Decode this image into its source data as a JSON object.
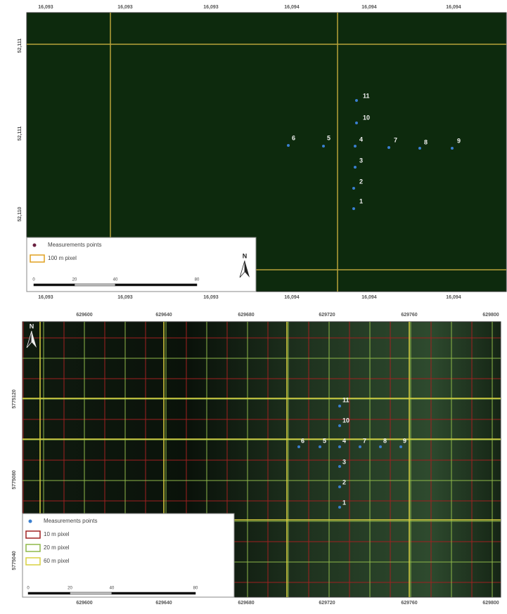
{
  "panels": [
    {
      "top_axis": [
        "16,093",
        "16,093",
        "16,093",
        "16,094",
        "16,094",
        "16,094"
      ],
      "bottom_axis": [
        "16,093",
        "16,093",
        "16,093",
        "16,094",
        "16,094",
        "16,094"
      ],
      "left_axis": [
        "52,111",
        "52,111",
        "52,110"
      ],
      "points": [
        "1",
        "2",
        "3",
        "4",
        "5",
        "6",
        "7",
        "8",
        "9",
        "10",
        "11"
      ],
      "legend": {
        "items": [
          "Measurements points",
          "100 m pixel"
        ],
        "scale": [
          "0",
          "20",
          "40",
          "80"
        ]
      },
      "north": "N"
    },
    {
      "top_axis": [
        "629600",
        "629640",
        "629680",
        "629720",
        "629760",
        "629800"
      ],
      "bottom_axis": [
        "629600",
        "629640",
        "629680",
        "629720",
        "629760",
        "629800"
      ],
      "left_axis": [
        "5775120",
        "5775080",
        "5775040"
      ],
      "points": [
        "1",
        "2",
        "3",
        "4",
        "5",
        "6",
        "7",
        "8",
        "9",
        "10",
        "11"
      ],
      "legend": {
        "items": [
          "Measurements points",
          "10 m pixel",
          "20 m pixel",
          "60 m pixel"
        ],
        "scale": [
          "0",
          "20",
          "40",
          "80"
        ]
      },
      "north": "N"
    }
  ]
}
